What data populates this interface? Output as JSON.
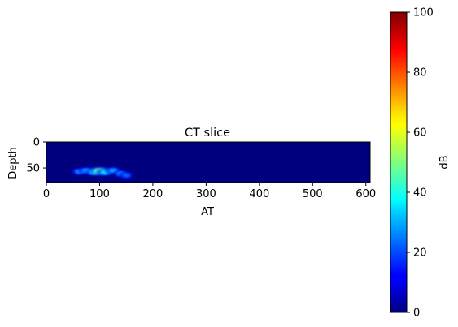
{
  "chart_data": {
    "type": "heatmap",
    "title": "CT slice",
    "xlabel": "AT",
    "ylabel": "Depth",
    "x_range": [
      0,
      608
    ],
    "y_range": [
      0,
      78
    ],
    "y_inverted": true,
    "x_ticks": [
      0,
      100,
      200,
      300,
      400,
      500,
      600
    ],
    "y_ticks": [
      0,
      50
    ],
    "colormap": "jet",
    "background_value": 0,
    "colorbar": {
      "label": "dB",
      "min": 0,
      "max": 100,
      "ticks": [
        0,
        20,
        40,
        60,
        80,
        100
      ]
    },
    "hotspots": [
      {
        "x": 62,
        "y": 57,
        "value": 30
      },
      {
        "x": 75,
        "y": 55,
        "value": 32
      },
      {
        "x": 90,
        "y": 58,
        "value": 40
      },
      {
        "x": 100,
        "y": 56,
        "value": 55
      },
      {
        "x": 110,
        "y": 58,
        "value": 40
      },
      {
        "x": 125,
        "y": 55,
        "value": 32
      },
      {
        "x": 140,
        "y": 61,
        "value": 30
      },
      {
        "x": 150,
        "y": 64,
        "value": 25
      }
    ]
  }
}
